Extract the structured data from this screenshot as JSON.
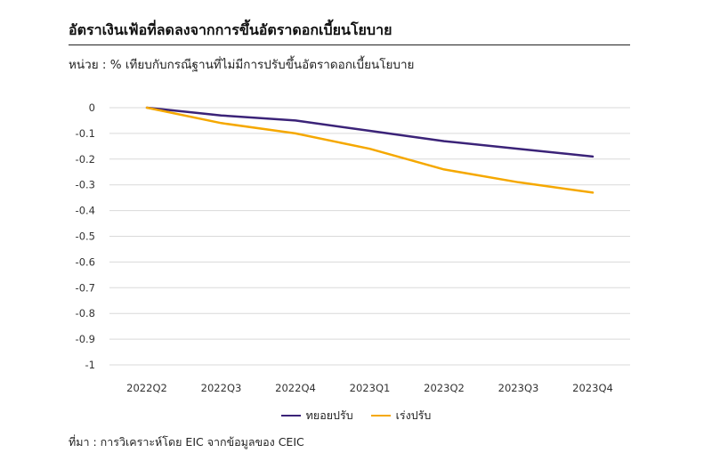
{
  "header": {
    "title": "อัตราเงินเฟ้อที่ลดลงจากการขึ้นอัตราดอกเบี้ยนโยบาย",
    "subtitle": "หน่วย : % เทียบกับกรณีฐานที่ไม่มีการปรับขึ้นอัตราดอกเบี้ยนโยบาย"
  },
  "source": "ที่มา : การวิเคราะห์โดย EIC จากข้อมูลของ CEIC",
  "chart_data": {
    "type": "line",
    "title": "อัตราเงินเฟ้อที่ลดลงจากการขึ้นอัตราดอกเบี้ยนโยบาย",
    "subtitle": "หน่วย : % เทียบกับกรณีฐานที่ไม่มีการปรับขึ้นอัตราดอกเบี้ยนโยบาย",
    "categories": [
      "2022Q2",
      "2022Q3",
      "2022Q4",
      "2023Q1",
      "2023Q2",
      "2023Q3",
      "2023Q4"
    ],
    "ylim": [
      -1,
      0
    ],
    "yticks": [
      0,
      -0.1,
      -0.2,
      -0.3,
      -0.4,
      -0.5,
      -0.6,
      -0.7,
      -0.8,
      -0.9,
      -1
    ],
    "ytick_labels": [
      "0",
      "-0.1",
      "-0.2",
      "-0.3",
      "-0.4",
      "-0.5",
      "-0.6",
      "-0.7",
      "-0.8",
      "-0.9",
      "-1"
    ],
    "grid": true,
    "legend_position": "bottom",
    "series": [
      {
        "name": "ทยอยปรับ",
        "color": "#3b2378",
        "values": [
          0,
          -0.03,
          -0.05,
          -0.09,
          -0.13,
          -0.16,
          -0.19
        ]
      },
      {
        "name": "เร่งปรับ",
        "color": "#f5a800",
        "values": [
          0,
          -0.06,
          -0.1,
          -0.16,
          -0.24,
          -0.29,
          -0.33
        ]
      }
    ]
  }
}
